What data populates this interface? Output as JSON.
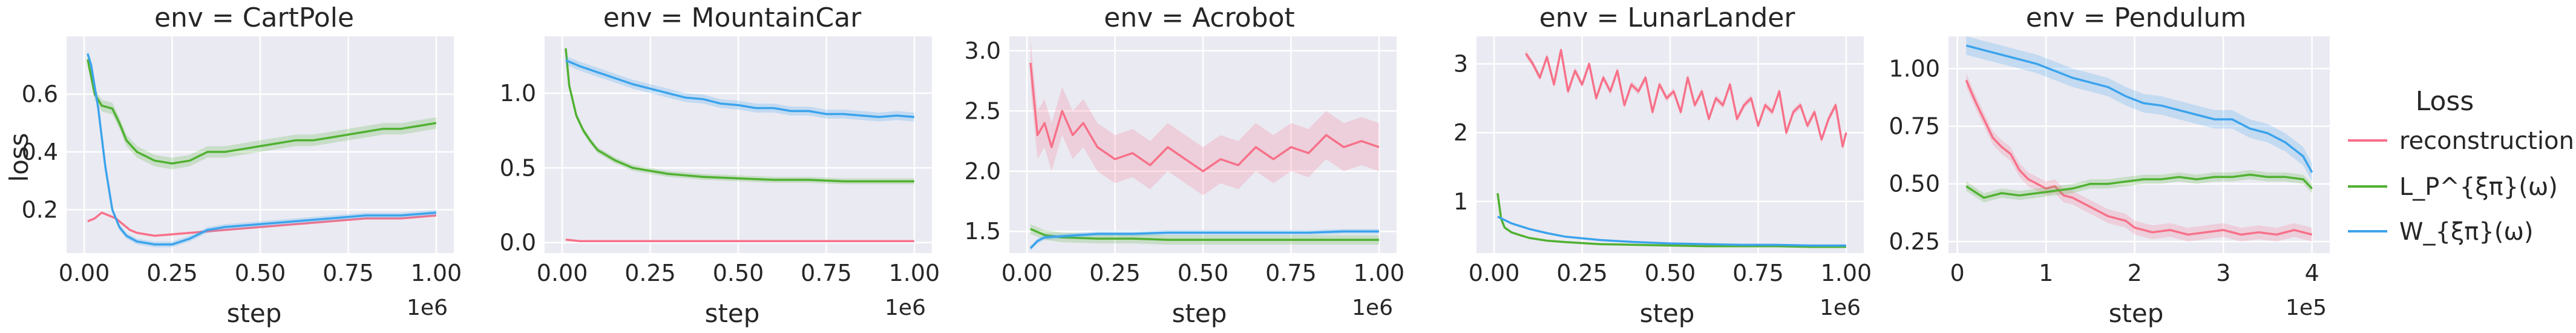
{
  "legend": {
    "title": "Loss",
    "entries": [
      "reconstruction",
      "L_P^{ξπ}(ω)",
      "W_{ξπ}(ω)"
    ],
    "colors": [
      "#f77189",
      "#50b131",
      "#3ba3ec"
    ],
    "placement": "right"
  },
  "chart_data": [
    {
      "type": "line",
      "title": "env = CartPole",
      "xlabel": "step",
      "ylabel": "loss",
      "x_offset_label": "1e6",
      "xlim": [
        -0.05,
        1.05
      ],
      "ylim": [
        0.05,
        0.8
      ],
      "xticks": [
        0.0,
        0.25,
        0.5,
        0.75,
        1.0
      ],
      "xtick_labels": [
        "0.00",
        "0.25",
        "0.50",
        "0.75",
        "1.00"
      ],
      "yticks": [
        0.2,
        0.4,
        0.6
      ],
      "ytick_labels": [
        "0.2",
        "0.4",
        "0.6"
      ],
      "grid": true,
      "series": [
        {
          "name": "reconstruction",
          "color": "#f77189",
          "x": [
            0.01,
            0.03,
            0.05,
            0.07,
            0.09,
            0.11,
            0.13,
            0.15,
            0.2,
            0.3,
            0.4,
            0.5,
            0.6,
            0.7,
            0.8,
            0.9,
            1.0
          ],
          "y": [
            0.16,
            0.17,
            0.19,
            0.18,
            0.17,
            0.15,
            0.13,
            0.12,
            0.11,
            0.12,
            0.13,
            0.14,
            0.15,
            0.16,
            0.17,
            0.17,
            0.18
          ]
        },
        {
          "name": "L_P^{ξπ}(ω)",
          "color": "#50b131",
          "x": [
            0.01,
            0.03,
            0.05,
            0.08,
            0.1,
            0.12,
            0.15,
            0.2,
            0.25,
            0.3,
            0.35,
            0.4,
            0.45,
            0.5,
            0.55,
            0.6,
            0.65,
            0.7,
            0.75,
            0.8,
            0.85,
            0.9,
            0.95,
            1.0
          ],
          "y": [
            0.72,
            0.6,
            0.56,
            0.55,
            0.5,
            0.44,
            0.4,
            0.37,
            0.36,
            0.37,
            0.4,
            0.4,
            0.41,
            0.42,
            0.43,
            0.44,
            0.44,
            0.45,
            0.46,
            0.47,
            0.48,
            0.48,
            0.49,
            0.5
          ],
          "band": 0.02
        },
        {
          "name": "W_{ξπ}(ω)",
          "color": "#3ba3ec",
          "x": [
            0.01,
            0.02,
            0.04,
            0.06,
            0.08,
            0.1,
            0.12,
            0.15,
            0.2,
            0.25,
            0.3,
            0.35,
            0.4,
            0.5,
            0.6,
            0.7,
            0.8,
            0.9,
            1.0
          ],
          "y": [
            0.74,
            0.7,
            0.55,
            0.35,
            0.2,
            0.14,
            0.11,
            0.09,
            0.08,
            0.08,
            0.1,
            0.13,
            0.14,
            0.15,
            0.16,
            0.17,
            0.18,
            0.18,
            0.19
          ],
          "band": 0.01
        }
      ]
    },
    {
      "type": "line",
      "title": "env = MountainCar",
      "xlabel": "step",
      "ylabel": "",
      "x_offset_label": "1e6",
      "xlim": [
        -0.05,
        1.05
      ],
      "ylim": [
        -0.07,
        1.38
      ],
      "xticks": [
        0.0,
        0.25,
        0.5,
        0.75,
        1.0
      ],
      "xtick_labels": [
        "0.00",
        "0.25",
        "0.50",
        "0.75",
        "1.00"
      ],
      "yticks": [
        0.0,
        0.5,
        1.0
      ],
      "ytick_labels": [
        "0.0",
        "0.5",
        "1.0"
      ],
      "grid": true,
      "series": [
        {
          "name": "reconstruction",
          "color": "#f77189",
          "x": [
            0.01,
            0.05,
            0.1,
            0.5,
            1.0
          ],
          "y": [
            0.02,
            0.01,
            0.01,
            0.01,
            0.01
          ]
        },
        {
          "name": "L_P^{ξπ}(ω)",
          "color": "#50b131",
          "x": [
            0.01,
            0.02,
            0.04,
            0.06,
            0.08,
            0.1,
            0.15,
            0.2,
            0.25,
            0.3,
            0.4,
            0.5,
            0.6,
            0.7,
            0.8,
            0.9,
            1.0
          ],
          "y": [
            1.3,
            1.05,
            0.85,
            0.75,
            0.68,
            0.62,
            0.55,
            0.5,
            0.48,
            0.46,
            0.44,
            0.43,
            0.42,
            0.42,
            0.41,
            0.41,
            0.41
          ],
          "band": 0.02
        },
        {
          "name": "W_{ξπ}(ω)",
          "color": "#3ba3ec",
          "x": [
            0.01,
            0.05,
            0.1,
            0.15,
            0.2,
            0.25,
            0.3,
            0.35,
            0.4,
            0.45,
            0.5,
            0.55,
            0.6,
            0.65,
            0.7,
            0.75,
            0.8,
            0.85,
            0.9,
            0.95,
            1.0
          ],
          "y": [
            1.22,
            1.18,
            1.14,
            1.1,
            1.06,
            1.03,
            1.0,
            0.97,
            0.96,
            0.93,
            0.92,
            0.9,
            0.9,
            0.88,
            0.88,
            0.86,
            0.86,
            0.85,
            0.84,
            0.85,
            0.84
          ],
          "band": 0.03
        }
      ]
    },
    {
      "type": "line",
      "title": "env = Acrobot",
      "xlabel": "step",
      "ylabel": "",
      "x_offset_label": "1e6",
      "xlim": [
        -0.05,
        1.05
      ],
      "ylim": [
        1.32,
        3.12
      ],
      "xticks": [
        0.0,
        0.25,
        0.5,
        0.75,
        1.0
      ],
      "xtick_labels": [
        "0.00",
        "0.25",
        "0.50",
        "0.75",
        "1.00"
      ],
      "yticks": [
        1.5,
        2.0,
        2.5,
        3.0
      ],
      "ytick_labels": [
        "1.5",
        "2.0",
        "2.5",
        "3.0"
      ],
      "grid": true,
      "series": [
        {
          "name": "reconstruction",
          "color": "#f77189",
          "x": [
            0.01,
            0.03,
            0.05,
            0.07,
            0.1,
            0.13,
            0.16,
            0.2,
            0.25,
            0.3,
            0.35,
            0.4,
            0.45,
            0.5,
            0.55,
            0.6,
            0.65,
            0.7,
            0.75,
            0.8,
            0.85,
            0.9,
            0.95,
            1.0
          ],
          "y": [
            2.9,
            2.3,
            2.4,
            2.2,
            2.5,
            2.3,
            2.4,
            2.2,
            2.1,
            2.15,
            2.05,
            2.2,
            2.1,
            2.0,
            2.1,
            2.05,
            2.2,
            2.1,
            2.2,
            2.15,
            2.3,
            2.2,
            2.25,
            2.2
          ],
          "band": 0.2
        },
        {
          "name": "L_P^{ξπ}(ω)",
          "color": "#50b131",
          "x": [
            0.01,
            0.05,
            0.1,
            0.2,
            0.3,
            0.4,
            0.5,
            0.6,
            0.7,
            0.8,
            0.9,
            1.0
          ],
          "y": [
            1.52,
            1.47,
            1.45,
            1.44,
            1.44,
            1.43,
            1.43,
            1.43,
            1.43,
            1.43,
            1.43,
            1.43
          ],
          "band": 0.04
        },
        {
          "name": "W_{ξπ}(ω)",
          "color": "#3ba3ec",
          "x": [
            0.01,
            0.03,
            0.05,
            0.1,
            0.15,
            0.2,
            0.3,
            0.4,
            0.5,
            0.6,
            0.7,
            0.8,
            0.9,
            1.0
          ],
          "y": [
            1.36,
            1.42,
            1.45,
            1.46,
            1.47,
            1.48,
            1.48,
            1.49,
            1.49,
            1.49,
            1.49,
            1.49,
            1.5,
            1.5
          ],
          "band": 0.02
        }
      ]
    },
    {
      "type": "line",
      "title": "env = LunarLander",
      "xlabel": "step",
      "ylabel": "",
      "x_offset_label": "1e6",
      "xlim": [
        -0.05,
        1.05
      ],
      "ylim": [
        0.25,
        3.4
      ],
      "xticks": [
        0.0,
        0.25,
        0.5,
        0.75,
        1.0
      ],
      "xtick_labels": [
        "0.00",
        "0.25",
        "0.50",
        "0.75",
        "1.00"
      ],
      "yticks": [
        1,
        2,
        3
      ],
      "ytick_labels": [
        "1",
        "2",
        "3"
      ],
      "grid": true,
      "series": [
        {
          "name": "reconstruction",
          "color": "#f77189",
          "x": [
            0.09,
            0.11,
            0.13,
            0.15,
            0.17,
            0.19,
            0.21,
            0.23,
            0.25,
            0.27,
            0.29,
            0.31,
            0.33,
            0.35,
            0.37,
            0.39,
            0.41,
            0.43,
            0.45,
            0.47,
            0.49,
            0.51,
            0.53,
            0.55,
            0.57,
            0.59,
            0.61,
            0.63,
            0.65,
            0.67,
            0.69,
            0.71,
            0.73,
            0.75,
            0.77,
            0.79,
            0.81,
            0.83,
            0.85,
            0.87,
            0.89,
            0.91,
            0.93,
            0.95,
            0.97,
            0.99,
            1.0
          ],
          "y": [
            3.15,
            3.0,
            2.8,
            3.1,
            2.7,
            3.2,
            2.6,
            2.9,
            2.7,
            3.0,
            2.5,
            2.8,
            2.6,
            2.9,
            2.4,
            2.7,
            2.6,
            2.8,
            2.3,
            2.7,
            2.5,
            2.6,
            2.3,
            2.8,
            2.4,
            2.6,
            2.2,
            2.5,
            2.4,
            2.7,
            2.2,
            2.4,
            2.5,
            2.1,
            2.4,
            2.3,
            2.6,
            2.0,
            2.3,
            2.4,
            2.1,
            2.3,
            1.9,
            2.2,
            2.4,
            1.8,
            2.0
          ],
          "band": 0.05
        },
        {
          "name": "L_P^{ξπ}(ω)",
          "color": "#50b131",
          "x": [
            0.01,
            0.02,
            0.03,
            0.05,
            0.08,
            0.1,
            0.15,
            0.2,
            0.3,
            0.4,
            0.5,
            0.6,
            0.7,
            0.8,
            0.9,
            1.0
          ],
          "y": [
            1.12,
            0.75,
            0.62,
            0.55,
            0.5,
            0.47,
            0.43,
            0.41,
            0.38,
            0.37,
            0.36,
            0.35,
            0.35,
            0.35,
            0.34,
            0.34
          ]
        },
        {
          "name": "W_{ξπ}(ω)",
          "color": "#3ba3ec",
          "x": [
            0.01,
            0.05,
            0.1,
            0.15,
            0.2,
            0.3,
            0.4,
            0.5,
            0.6,
            0.7,
            0.8,
            0.9,
            1.0
          ],
          "y": [
            0.78,
            0.68,
            0.6,
            0.54,
            0.49,
            0.44,
            0.41,
            0.39,
            0.38,
            0.37,
            0.37,
            0.36,
            0.36
          ]
        }
      ]
    },
    {
      "type": "line",
      "title": "env = Pendulum",
      "xlabel": "step",
      "ylabel": "",
      "x_offset_label": "1e5",
      "xlim": [
        -0.1,
        4.2
      ],
      "ylim": [
        0.2,
        1.14
      ],
      "xticks": [
        0,
        1,
        2,
        3,
        4
      ],
      "xtick_labels": [
        "0",
        "1",
        "2",
        "3",
        "4"
      ],
      "yticks": [
        0.25,
        0.5,
        0.75,
        1.0
      ],
      "ytick_labels": [
        "0.25",
        "0.50",
        "0.75",
        "1.00"
      ],
      "grid": true,
      "series": [
        {
          "name": "reconstruction",
          "color": "#f77189",
          "x": [
            0.1,
            0.2,
            0.3,
            0.4,
            0.5,
            0.6,
            0.7,
            0.8,
            0.9,
            1.0,
            1.1,
            1.2,
            1.3,
            1.4,
            1.5,
            1.6,
            1.7,
            1.8,
            1.9,
            2.0,
            2.2,
            2.4,
            2.6,
            2.8,
            3.0,
            3.2,
            3.4,
            3.6,
            3.8,
            4.0
          ],
          "y": [
            0.95,
            0.86,
            0.78,
            0.7,
            0.66,
            0.63,
            0.56,
            0.52,
            0.5,
            0.48,
            0.49,
            0.45,
            0.44,
            0.42,
            0.4,
            0.38,
            0.36,
            0.35,
            0.34,
            0.31,
            0.29,
            0.3,
            0.28,
            0.29,
            0.3,
            0.28,
            0.29,
            0.28,
            0.3,
            0.28
          ],
          "band": 0.03
        },
        {
          "name": "L_P^{ξπ}(ω)",
          "color": "#50b131",
          "x": [
            0.1,
            0.3,
            0.5,
            0.7,
            0.9,
            1.1,
            1.3,
            1.5,
            1.7,
            1.9,
            2.1,
            2.3,
            2.5,
            2.7,
            2.9,
            3.1,
            3.3,
            3.5,
            3.7,
            3.9,
            4.0
          ],
          "y": [
            0.49,
            0.44,
            0.46,
            0.45,
            0.46,
            0.47,
            0.48,
            0.5,
            0.5,
            0.51,
            0.52,
            0.52,
            0.53,
            0.52,
            0.53,
            0.53,
            0.54,
            0.53,
            0.53,
            0.52,
            0.48
          ],
          "band": 0.02
        },
        {
          "name": "W_{ξπ}(ω)",
          "color": "#3ba3ec",
          "x": [
            0.1,
            0.3,
            0.5,
            0.7,
            0.9,
            1.1,
            1.3,
            1.5,
            1.7,
            1.9,
            2.1,
            2.3,
            2.5,
            2.7,
            2.9,
            3.1,
            3.3,
            3.5,
            3.7,
            3.9,
            4.0
          ],
          "y": [
            1.1,
            1.08,
            1.06,
            1.04,
            1.02,
            0.99,
            0.96,
            0.94,
            0.92,
            0.88,
            0.85,
            0.84,
            0.82,
            0.8,
            0.78,
            0.78,
            0.74,
            0.72,
            0.68,
            0.62,
            0.55
          ],
          "band": 0.04
        }
      ]
    }
  ]
}
